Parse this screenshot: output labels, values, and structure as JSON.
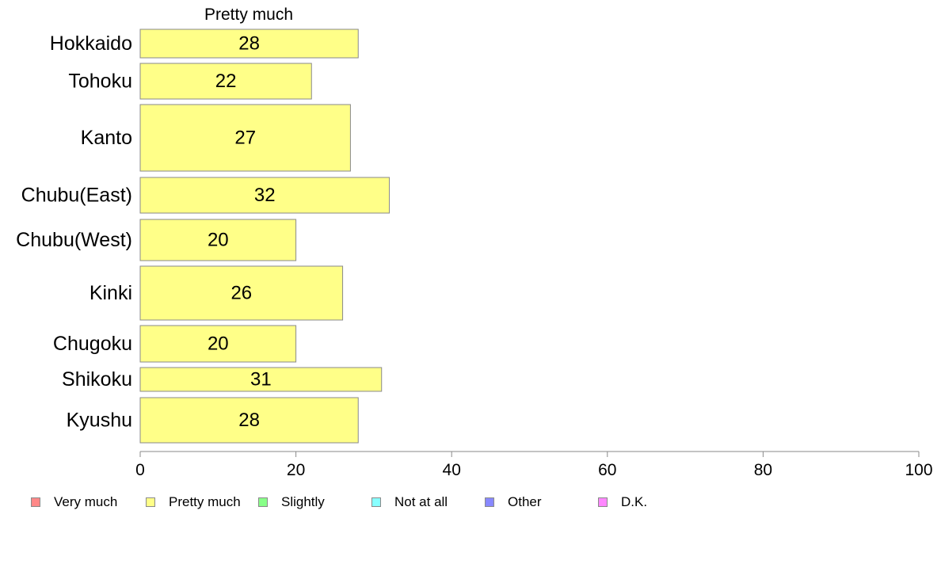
{
  "chart_data": {
    "type": "bar",
    "orientation": "horizontal",
    "title": "Pretty much",
    "categories": [
      "Hokkaido",
      "Tohoku",
      "Kanto",
      "Chubu(East)",
      "Chubu(West)",
      "Kinki",
      "Chugoku",
      "Shikoku",
      "Kyushu"
    ],
    "series": [
      {
        "name": "Pretty much",
        "color": "#ffff88",
        "values": [
          28,
          22,
          27,
          32,
          20,
          26,
          20,
          31,
          28
        ]
      }
    ],
    "data_labels": [
      "28",
      "22",
      "27",
      "32",
      "20",
      "26",
      "20",
      "31",
      "28"
    ],
    "xlim": [
      0,
      100
    ],
    "x_ticks": [
      "0",
      "20",
      "40",
      "60",
      "80",
      "100"
    ],
    "grid": false,
    "legend": {
      "placement": "bottom",
      "items": [
        {
          "label": "Very much",
          "color": "#ff8888"
        },
        {
          "label": "Pretty much",
          "color": "#ffff88"
        },
        {
          "label": "Slightly",
          "color": "#88ff88"
        },
        {
          "label": "Not at all",
          "color": "#88ffff"
        },
        {
          "label": "Other",
          "color": "#8888ff"
        },
        {
          "label": "D.K.",
          "color": "#ff88ff"
        }
      ]
    }
  }
}
